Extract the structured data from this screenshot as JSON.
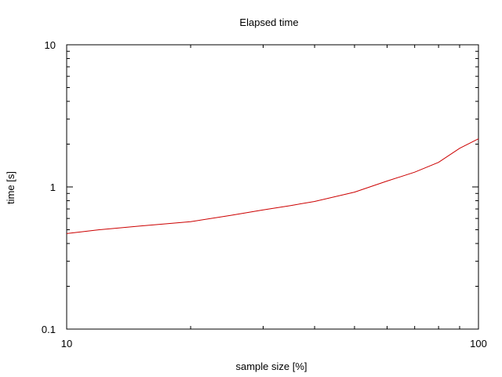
{
  "chart_data": {
    "type": "line",
    "title": "Elapsed time",
    "xlabel": "sample size [%]",
    "ylabel": "time [s]",
    "x_scale": "log",
    "y_scale": "log",
    "xlim": [
      10,
      100
    ],
    "ylim": [
      0.1,
      10
    ],
    "x_ticks": [
      10,
      100
    ],
    "x_tick_labels": [
      "10",
      "100"
    ],
    "y_ticks": [
      0.1,
      1,
      10
    ],
    "y_tick_labels": [
      "0.1",
      "1",
      "10"
    ],
    "grid": false,
    "legend": "none",
    "series": [
      {
        "color": "#cc0000",
        "x": [
          10,
          12,
          15,
          20,
          25,
          30,
          35,
          40,
          50,
          60,
          70,
          80,
          90,
          100
        ],
        "y": [
          0.47,
          0.5,
          0.53,
          0.57,
          0.63,
          0.69,
          0.74,
          0.79,
          0.92,
          1.1,
          1.27,
          1.49,
          1.87,
          2.18
        ]
      }
    ]
  }
}
